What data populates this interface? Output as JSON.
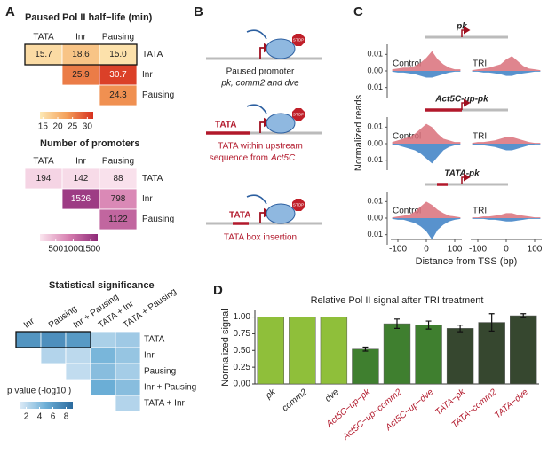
{
  "panel_a": {
    "label": "A",
    "half_life": {
      "title": "Paused Pol II half−life (min)",
      "columns": [
        "TATA",
        "Inr",
        "Pausing"
      ],
      "rows": [
        "TATA",
        "Inr",
        "Pausing"
      ],
      "values": [
        [
          15.7,
          18.6,
          15.0
        ],
        [
          null,
          25.9,
          30.7
        ],
        [
          null,
          null,
          24.3
        ]
      ],
      "value_labels": [
        [
          "15.7",
          "18.6",
          "15.0"
        ],
        [
          null,
          "25.9",
          "30.7"
        ],
        [
          null,
          null,
          "24.3"
        ]
      ],
      "clim": [
        14,
        32
      ],
      "colorscale": [
        "#fde9b5",
        "#f4a05a",
        "#d7301f"
      ],
      "legend_ticks": [
        15,
        20,
        25,
        30
      ]
    },
    "promoters": {
      "title": "Number of promoters",
      "columns": [
        "TATA",
        "Inr",
        "Pausing"
      ],
      "rows": [
        "TATA",
        "Inr",
        "Pausing"
      ],
      "values": [
        [
          194,
          142,
          88
        ],
        [
          null,
          1526,
          798
        ],
        [
          null,
          null,
          1122
        ]
      ],
      "clim": [
        50,
        1700
      ],
      "colorscale": [
        "#fbe6ef",
        "#d77fb0",
        "#8e2a78"
      ],
      "legend_ticks": [
        500,
        1000,
        1500
      ]
    },
    "significance": {
      "title": "Statistical significance",
      "columns": [
        "Inr",
        "Pausing",
        "Inr + Pausing",
        "TATA + Inr",
        "TATA + Pausing"
      ],
      "rows": [
        "TATA",
        "Inr",
        "Pausing",
        "Inr + Pausing",
        "TATA + Inr"
      ],
      "values": [
        [
          6.5,
          6.8,
          6.2,
          2.8,
          3.2
        ],
        [
          null,
          2.5,
          2.2,
          4.5,
          3.5
        ],
        [
          null,
          null,
          2.0,
          4.0,
          3.0
        ],
        [
          null,
          null,
          null,
          5.0,
          4.0
        ],
        [
          null,
          null,
          null,
          null,
          2.5
        ]
      ],
      "clim": [
        1,
        9
      ],
      "colorscale": [
        "#deebf7",
        "#6baed6",
        "#2b6a9e"
      ],
      "legend_title": "p value (-log10 )",
      "legend_ticks": [
        2,
        4,
        6,
        8
      ]
    }
  },
  "panel_b": {
    "label": "B",
    "stop_signs": [
      "STOP",
      "STOP",
      "STOP"
    ],
    "tata_labels": [
      "TATA",
      "TATA"
    ],
    "captions": [
      [
        "Paused promoter",
        "pk, comm2 and dve"
      ],
      [
        "TATA within upstream",
        "sequence from",
        "Act5C"
      ],
      [
        "TATA box insertion"
      ]
    ]
  },
  "panel_c": {
    "label": "C",
    "ylabel": "Normalized reads",
    "xlabel": "Distance from TSS (bp)",
    "conditions": [
      "Control",
      "TRI"
    ],
    "xlim": [
      -125,
      125
    ],
    "xticks": [
      -100,
      0,
      100
    ],
    "ylim": [
      -0.015,
      0.015
    ],
    "yticks": [
      0.01,
      {
        "value": 0,
        "label": "0.00"
      },
      {
        "value": -0.01,
        "label": "0.01"
      }
    ],
    "x": [
      -120,
      -100,
      -80,
      -60,
      -40,
      -20,
      0,
      20,
      40,
      60,
      80,
      100,
      120
    ],
    "tracks": [
      {
        "title": "pk",
        "control": {
          "pos": [
            0.001,
            0.0015,
            0.002,
            0.002,
            0.003,
            0.005,
            0.008,
            0.012,
            0.007,
            0.004,
            0.002,
            0.001,
            0.001
          ],
          "neg": [
            -0.0005,
            -0.001,
            -0.001,
            -0.0015,
            -0.002,
            -0.003,
            -0.004,
            -0.004,
            -0.003,
            -0.002,
            -0.001,
            -0.0005,
            -0.0005
          ]
        },
        "tri": {
          "pos": [
            0.0005,
            0.001,
            0.0015,
            0.002,
            0.003,
            0.004,
            0.007,
            0.009,
            0.006,
            0.003,
            0.0015,
            0.001,
            0.0005
          ],
          "neg": [
            -0.0005,
            -0.0005,
            -0.001,
            -0.001,
            -0.0015,
            -0.002,
            -0.003,
            -0.003,
            -0.002,
            -0.0015,
            -0.001,
            -0.0005,
            -0.0005
          ]
        }
      },
      {
        "title": "Act5C-up-pk",
        "control": {
          "pos": [
            0.001,
            0.002,
            0.003,
            0.004,
            0.006,
            0.009,
            0.012,
            0.01,
            0.006,
            0.003,
            0.002,
            0.001,
            0.001
          ],
          "neg": [
            -0.0005,
            -0.001,
            -0.002,
            -0.003,
            -0.004,
            -0.006,
            -0.009,
            -0.012,
            -0.008,
            -0.004,
            -0.002,
            -0.001,
            -0.0005
          ]
        },
        "tri": {
          "pos": [
            0.0005,
            0.001,
            0.001,
            0.0015,
            0.002,
            0.003,
            0.004,
            0.004,
            0.003,
            0.002,
            0.001,
            0.0005,
            0.0005
          ],
          "neg": [
            -0.0005,
            -0.001,
            -0.001,
            -0.0015,
            -0.002,
            -0.003,
            -0.004,
            -0.004,
            -0.003,
            -0.002,
            -0.001,
            -0.0005,
            -0.0005
          ]
        }
      },
      {
        "title": "TATA-pk",
        "control": {
          "pos": [
            0.0005,
            0.001,
            0.0015,
            0.002,
            0.004,
            0.007,
            0.01,
            0.008,
            0.005,
            0.003,
            0.0015,
            0.001,
            0.0005
          ],
          "neg": [
            -0.0005,
            -0.001,
            -0.001,
            -0.002,
            -0.003,
            -0.005,
            -0.008,
            -0.013,
            -0.007,
            -0.004,
            -0.002,
            -0.001,
            -0.0005
          ]
        },
        "tri": {
          "pos": [
            0.0005,
            0.0005,
            0.001,
            0.001,
            0.0015,
            0.002,
            0.003,
            0.003,
            0.002,
            0.0015,
            0.001,
            0.0005,
            0.0005
          ],
          "neg": [
            -0.0005,
            -0.0005,
            -0.0005,
            -0.001,
            -0.001,
            -0.0015,
            -0.002,
            -0.002,
            -0.0015,
            -0.001,
            -0.0005,
            -0.0005,
            -0.0005
          ]
        }
      }
    ]
  },
  "panel_d": {
    "label": "D"
  },
  "chart_data": {
    "type": "bar",
    "title": "Relative Pol II signal after TRI treatment",
    "ylabel": "Normalized signal",
    "categories": [
      "pk",
      "comm2",
      "dve",
      "Act5C−up−pk",
      "Act5C−up−comm2",
      "Act5C−up−dve",
      "TATA−pk",
      "TATA−comm2",
      "TATA−dve"
    ],
    "values": [
      1.0,
      1.0,
      1.0,
      0.52,
      0.9,
      0.88,
      0.83,
      0.92,
      1.02
    ],
    "errors": [
      null,
      null,
      null,
      0.03,
      0.07,
      0.06,
      0.05,
      0.13,
      0.03
    ],
    "colors": [
      "#8fbf3a",
      "#8fbf3a",
      "#8fbf3a",
      "#3f7f2f",
      "#3f7f2f",
      "#3f7f2f",
      "#36472f",
      "#36472f",
      "#36472f"
    ],
    "label_colors": [
      "#222222",
      "#222222",
      "#222222",
      "#b2182b",
      "#b2182b",
      "#b2182b",
      "#b2182b",
      "#b2182b",
      "#b2182b"
    ],
    "reference_line": 1.0,
    "ylim": [
      0,
      1.1
    ],
    "yticks": [
      {
        "value": 0,
        "label": "0.00"
      },
      {
        "value": 0.25,
        "label": "0.25"
      },
      {
        "value": 0.5,
        "label": "0.50"
      },
      {
        "value": 0.75,
        "label": "0.75"
      },
      {
        "value": 1.0,
        "label": "1.00"
      }
    ]
  }
}
